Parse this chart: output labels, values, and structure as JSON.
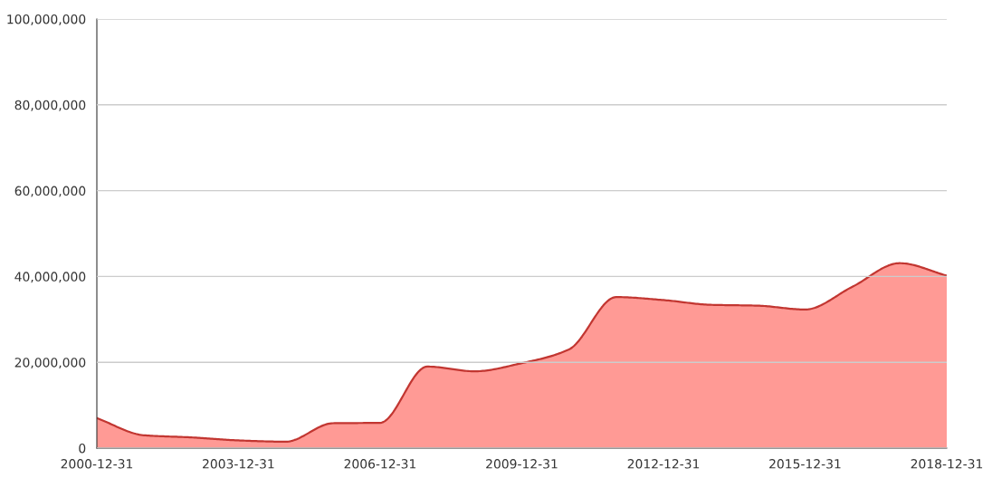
{
  "chart_data": {
    "type": "area",
    "x": [
      "2000-12-31",
      "2001-12-31",
      "2002-12-31",
      "2003-12-31",
      "2004-12-31",
      "2005-12-31",
      "2006-12-31",
      "2007-12-31",
      "2008-12-31",
      "2009-12-31",
      "2010-12-31",
      "2011-12-31",
      "2012-12-31",
      "2013-12-31",
      "2014-12-31",
      "2015-12-31",
      "2016-12-31",
      "2017-12-31",
      "2018-12-31"
    ],
    "series": [
      {
        "color": "#ff9a95",
        "values": [
          7000000,
          3000000,
          2500000,
          1800000,
          1500000,
          5800000,
          5900000,
          19000000,
          17900000,
          19800000,
          23000000,
          35200000,
          34500000,
          33400000,
          33200000,
          32300000,
          37600000,
          43100000,
          40200000
        ]
      }
    ],
    "xlim": [
      "2000-12-31",
      "2018-12-31"
    ],
    "xticks": [
      {
        "value": "2000-12-31",
        "label": "2000-12-31"
      },
      {
        "value": "2003-12-31",
        "label": "2003-12-31"
      },
      {
        "value": "2006-12-31",
        "label": "2006-12-31"
      },
      {
        "value": "2009-12-31",
        "label": "2009-12-31"
      },
      {
        "value": "2012-12-31",
        "label": "2012-12-31"
      },
      {
        "value": "2015-12-31",
        "label": "2015-12-31"
      },
      {
        "value": "2018-12-31",
        "label": "2018-12-31"
      }
    ],
    "ylim": [
      0,
      100000000
    ],
    "yticks": [
      0,
      {
        "value": 20000000,
        "label": "20,000,000"
      },
      {
        "value": 40000000,
        "label": "40,000,000"
      },
      {
        "value": 60000000,
        "label": "60,000,000"
      },
      {
        "value": 80000000,
        "label": "80,000,000"
      },
      {
        "value": 100000000,
        "label": "100,000,000"
      }
    ],
    "grid": "y"
  }
}
